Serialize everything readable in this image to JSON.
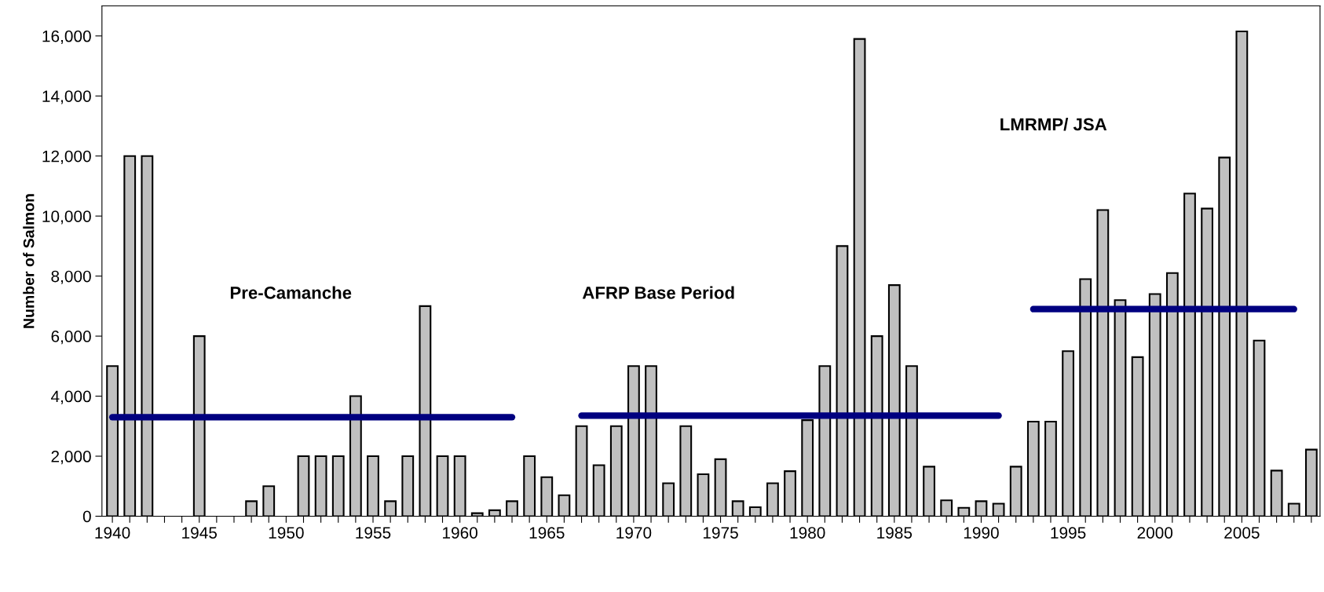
{
  "chart_data": {
    "type": "bar",
    "ylabel": "Number of Salmon",
    "x": [
      1940,
      1941,
      1942,
      1943,
      1944,
      1945,
      1946,
      1947,
      1948,
      1949,
      1950,
      1951,
      1952,
      1953,
      1954,
      1955,
      1956,
      1957,
      1958,
      1959,
      1960,
      1961,
      1962,
      1963,
      1964,
      1965,
      1966,
      1967,
      1968,
      1969,
      1970,
      1971,
      1972,
      1973,
      1974,
      1975,
      1976,
      1977,
      1978,
      1979,
      1980,
      1981,
      1982,
      1983,
      1984,
      1985,
      1986,
      1987,
      1988,
      1989,
      1990,
      1991,
      1992,
      1993,
      1994,
      1995,
      1996,
      1997,
      1998,
      1999,
      2000,
      2001,
      2002,
      2003,
      2004,
      2005,
      2006,
      2007,
      2008,
      2009
    ],
    "series": [
      {
        "color": "#c0c0c0",
        "values": [
          5000,
          12000,
          12000,
          null,
          null,
          6000,
          null,
          null,
          500,
          1000,
          null,
          2000,
          2000,
          2000,
          4000,
          2000,
          500,
          2000,
          7000,
          2000,
          2000,
          100,
          200,
          500,
          2000,
          1300,
          700,
          3000,
          1700,
          3000,
          5000,
          5000,
          1100,
          3000,
          1400,
          1900,
          500,
          300,
          1100,
          1500,
          3200,
          5000,
          9000,
          15900,
          6000,
          7700,
          5000,
          1650,
          530,
          280,
          500,
          420,
          1650,
          3150,
          3150,
          5500,
          7900,
          10200,
          7200,
          5300,
          7400,
          8100,
          10750,
          10250,
          11950,
          16150,
          5850,
          1520,
          420,
          2220
        ]
      },
      {
        "type": "line",
        "color": "#000080",
        "x": [
          1940,
          1963
        ],
        "values": [
          3300,
          3300
        ]
      },
      {
        "type": "line",
        "color": "#000080",
        "x": [
          1967,
          1991
        ],
        "values": [
          3350,
          3350
        ]
      },
      {
        "type": "line",
        "color": "#000080",
        "x": [
          1993,
          2008
        ],
        "values": [
          6900,
          6900
        ]
      }
    ],
    "xlim": [
      1939.4,
      2009.5
    ],
    "xticks": [
      1940,
      {
        "value": 1941,
        "label": null
      },
      {
        "value": 1942,
        "label": null
      },
      {
        "value": 1943,
        "label": null
      },
      {
        "value": 1944,
        "label": null
      },
      1945,
      {
        "value": 1946,
        "label": null
      },
      {
        "value": 1947,
        "label": null
      },
      {
        "value": 1948,
        "label": null
      },
      {
        "value": 1949,
        "label": null
      },
      1950,
      {
        "value": 1951,
        "label": null
      },
      {
        "value": 1952,
        "label": null
      },
      {
        "value": 1953,
        "label": null
      },
      {
        "value": 1954,
        "label": null
      },
      1955,
      {
        "value": 1956,
        "label": null
      },
      {
        "value": 1957,
        "label": null
      },
      {
        "value": 1958,
        "label": null
      },
      {
        "value": 1959,
        "label": null
      },
      1960,
      {
        "value": 1961,
        "label": null
      },
      {
        "value": 1962,
        "label": null
      },
      {
        "value": 1963,
        "label": null
      },
      {
        "value": 1964,
        "label": null
      },
      1965,
      {
        "value": 1966,
        "label": null
      },
      {
        "value": 1967,
        "label": null
      },
      {
        "value": 1968,
        "label": null
      },
      {
        "value": 1969,
        "label": null
      },
      1970,
      {
        "value": 1971,
        "label": null
      },
      {
        "value": 1972,
        "label": null
      },
      {
        "value": 1973,
        "label": null
      },
      {
        "value": 1974,
        "label": null
      },
      1975,
      {
        "value": 1976,
        "label": null
      },
      {
        "value": 1977,
        "label": null
      },
      {
        "value": 1978,
        "label": null
      },
      {
        "value": 1979,
        "label": null
      },
      1980,
      {
        "value": 1981,
        "label": null
      },
      {
        "value": 1982,
        "label": null
      },
      {
        "value": 1983,
        "label": null
      },
      {
        "value": 1984,
        "label": null
      },
      1985,
      {
        "value": 1986,
        "label": null
      },
      {
        "value": 1987,
        "label": null
      },
      {
        "value": 1988,
        "label": null
      },
      {
        "value": 1989,
        "label": null
      },
      1990,
      {
        "value": 1991,
        "label": null
      },
      {
        "value": 1992,
        "label": null
      },
      {
        "value": 1993,
        "label": null
      },
      {
        "value": 1994,
        "label": null
      },
      1995,
      {
        "value": 1996,
        "label": null
      },
      {
        "value": 1997,
        "label": null
      },
      {
        "value": 1998,
        "label": null
      },
      {
        "value": 1999,
        "label": null
      },
      2000,
      {
        "value": 2001,
        "label": null
      },
      {
        "value": 2002,
        "label": null
      },
      {
        "value": 2003,
        "label": null
      },
      {
        "value": 2004,
        "label": null
      },
      2005,
      {
        "value": 2006,
        "label": null
      },
      {
        "value": 2007,
        "label": null
      },
      {
        "value": 2008,
        "label": null
      },
      {
        "value": 2009,
        "label": null
      }
    ],
    "ylim": [
      0,
      17000
    ],
    "yticks": [
      0,
      {
        "value": 2000,
        "label": "2,000"
      },
      {
        "value": 4000,
        "label": "4,000"
      },
      {
        "value": 6000,
        "label": "6,000"
      },
      {
        "value": 8000,
        "label": "8,000"
      },
      {
        "value": 10000,
        "label": "10,000"
      },
      {
        "value": 12000,
        "label": "12,000"
      },
      {
        "value": 14000,
        "label": "14,000"
      },
      {
        "value": 16000,
        "label": "16,000"
      }
    ],
    "grid": false,
    "legend": false,
    "annotations": [
      "Pre-Camanche",
      "AFRP Base Period",
      "LMRMP/ JSA"
    ]
  }
}
